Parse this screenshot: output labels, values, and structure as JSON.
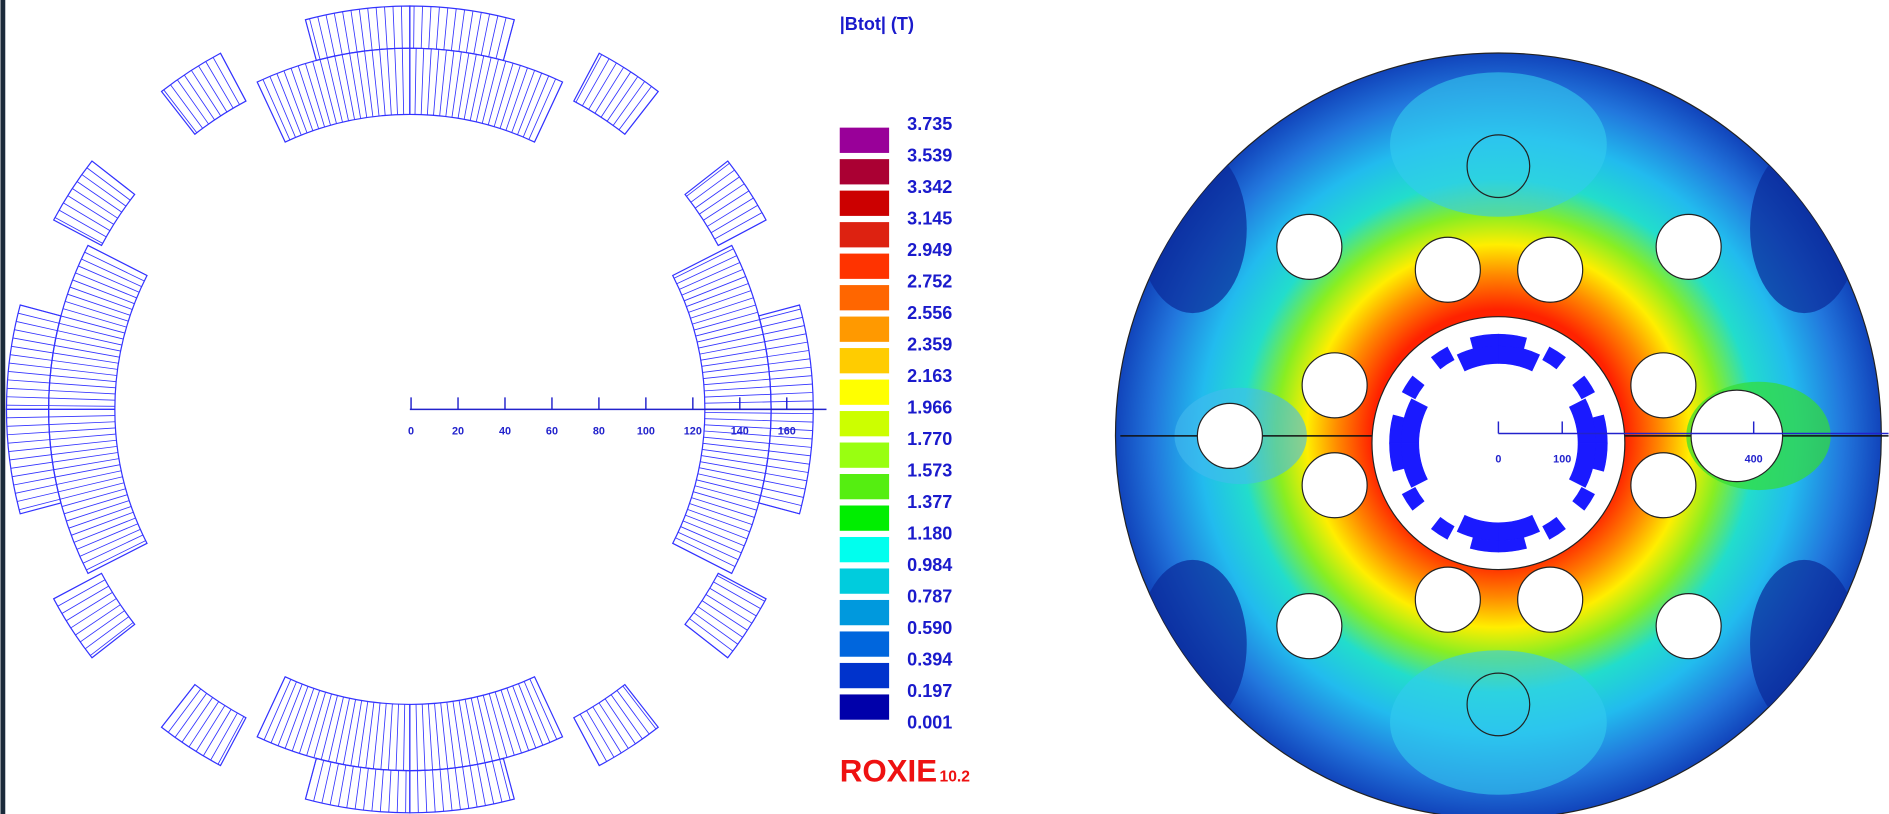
{
  "colorbar": {
    "title": "|Btot| (T)",
    "labels": [
      "3.735",
      "3.539",
      "3.342",
      "3.145",
      "2.949",
      "2.752",
      "2.556",
      "2.359",
      "2.163",
      "1.966",
      "1.770",
      "1.573",
      "1.377",
      "1.180",
      "0.984",
      "0.787",
      "0.590",
      "0.394",
      "0.197",
      "0.001"
    ],
    "colors": [
      "#990099",
      "#aa0033",
      "#cc0000",
      "#dd2211",
      "#ff3300",
      "#ff6600",
      "#ff9900",
      "#ffcc00",
      "#ffff00",
      "#ccff00",
      "#99ff11",
      "#55ee11",
      "#00ee00",
      "#00ffee",
      "#00ccdd",
      "#0099dd",
      "#0066dd",
      "#0033cc",
      "#0000aa"
    ]
  },
  "logo": {
    "name": "ROXIE",
    "version": "10.2"
  },
  "left_axis": {
    "ticks": [
      0,
      20,
      40,
      60,
      80,
      100,
      120,
      140,
      160
    ]
  },
  "right_axis": {
    "ticks": [
      0,
      100,
      400
    ]
  }
}
